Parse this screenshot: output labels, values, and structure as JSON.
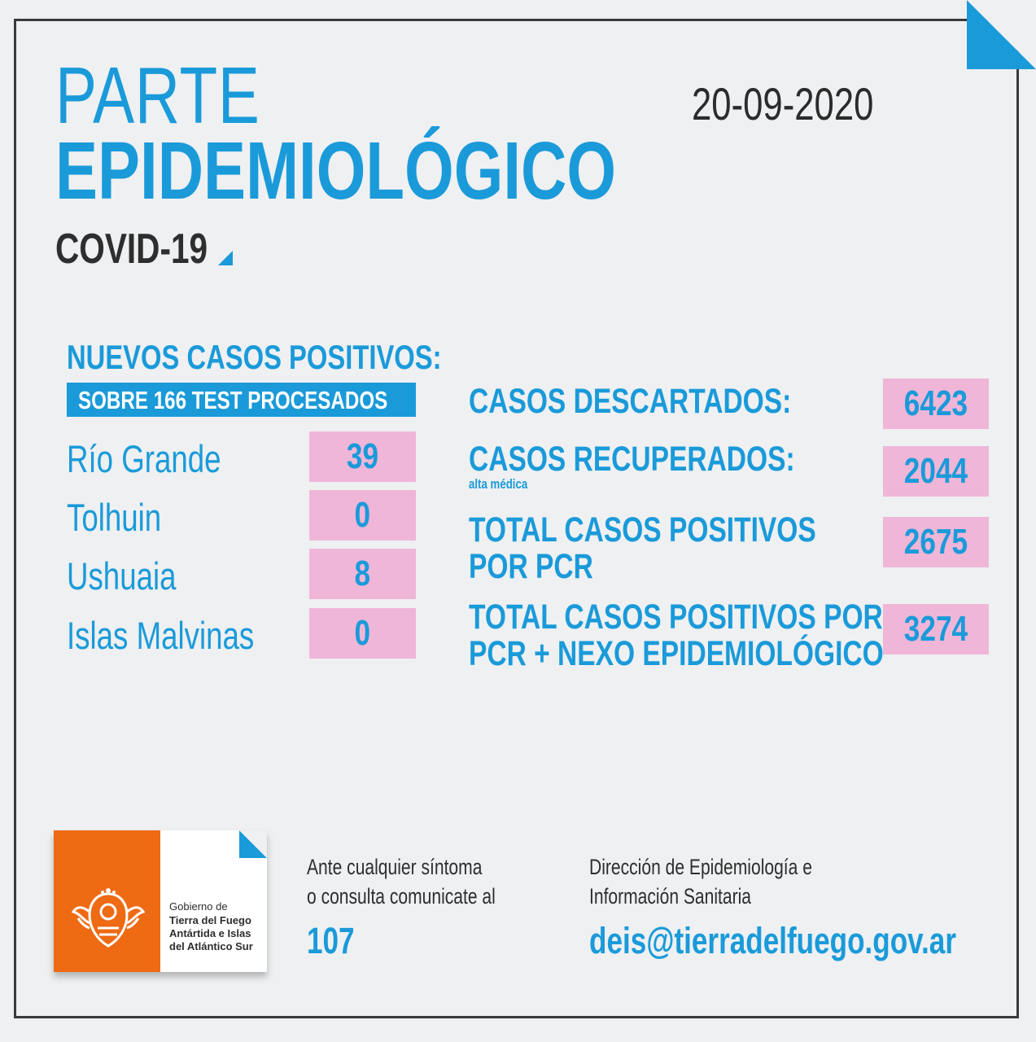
{
  "header": {
    "title_line1": "PARTE",
    "title_line2": "EPIDEMIOLÓGICO",
    "subtitle": "COVID-19",
    "date": "20-09-2020"
  },
  "new_cases": {
    "heading": "NUEVOS CASOS POSITIVOS:",
    "banner": "SOBRE 166 TEST PROCESADOS",
    "locations": [
      {
        "name": "Río Grande",
        "value": "39"
      },
      {
        "name": "Tolhuin",
        "value": "0"
      },
      {
        "name": "Ushuaia",
        "value": "8"
      },
      {
        "name": "Islas Malvinas",
        "value": "0"
      }
    ]
  },
  "stats": {
    "descartados": {
      "label": "CASOS DESCARTADOS:",
      "value": "6423"
    },
    "recuperados": {
      "label": "CASOS RECUPERADOS:",
      "note": "alta médica",
      "value": "2044"
    },
    "total_pcr": {
      "label_line1": "TOTAL CASOS POSITIVOS",
      "label_line2": "POR PCR",
      "value": "2675"
    },
    "total_nexo": {
      "label_line1": "TOTAL CASOS POSITIVOS POR",
      "label_line2": "PCR + NEXO EPIDEMIOLÓGICO",
      "value": "3274"
    }
  },
  "logo": {
    "line1": "Gobierno de",
    "line2": "Tierra del Fuego",
    "line3": "Antártida e Islas",
    "line4": "del Atlántico Sur"
  },
  "footer": {
    "contact_line1": "Ante cualquier síntoma",
    "contact_line2": "o consulta comunicate al",
    "phone": "107",
    "dept_line1": "Dirección de Epidemiología e",
    "dept_line2": "Información Sanitaria",
    "email": "deis@tierradelfuego.gov.ar"
  },
  "colors": {
    "accent": "#1a9ad9",
    "highlight": "#efb6d8",
    "logo_orange": "#ee6a13",
    "text_dark": "#2e2e2e",
    "background": "#eef0f2"
  }
}
